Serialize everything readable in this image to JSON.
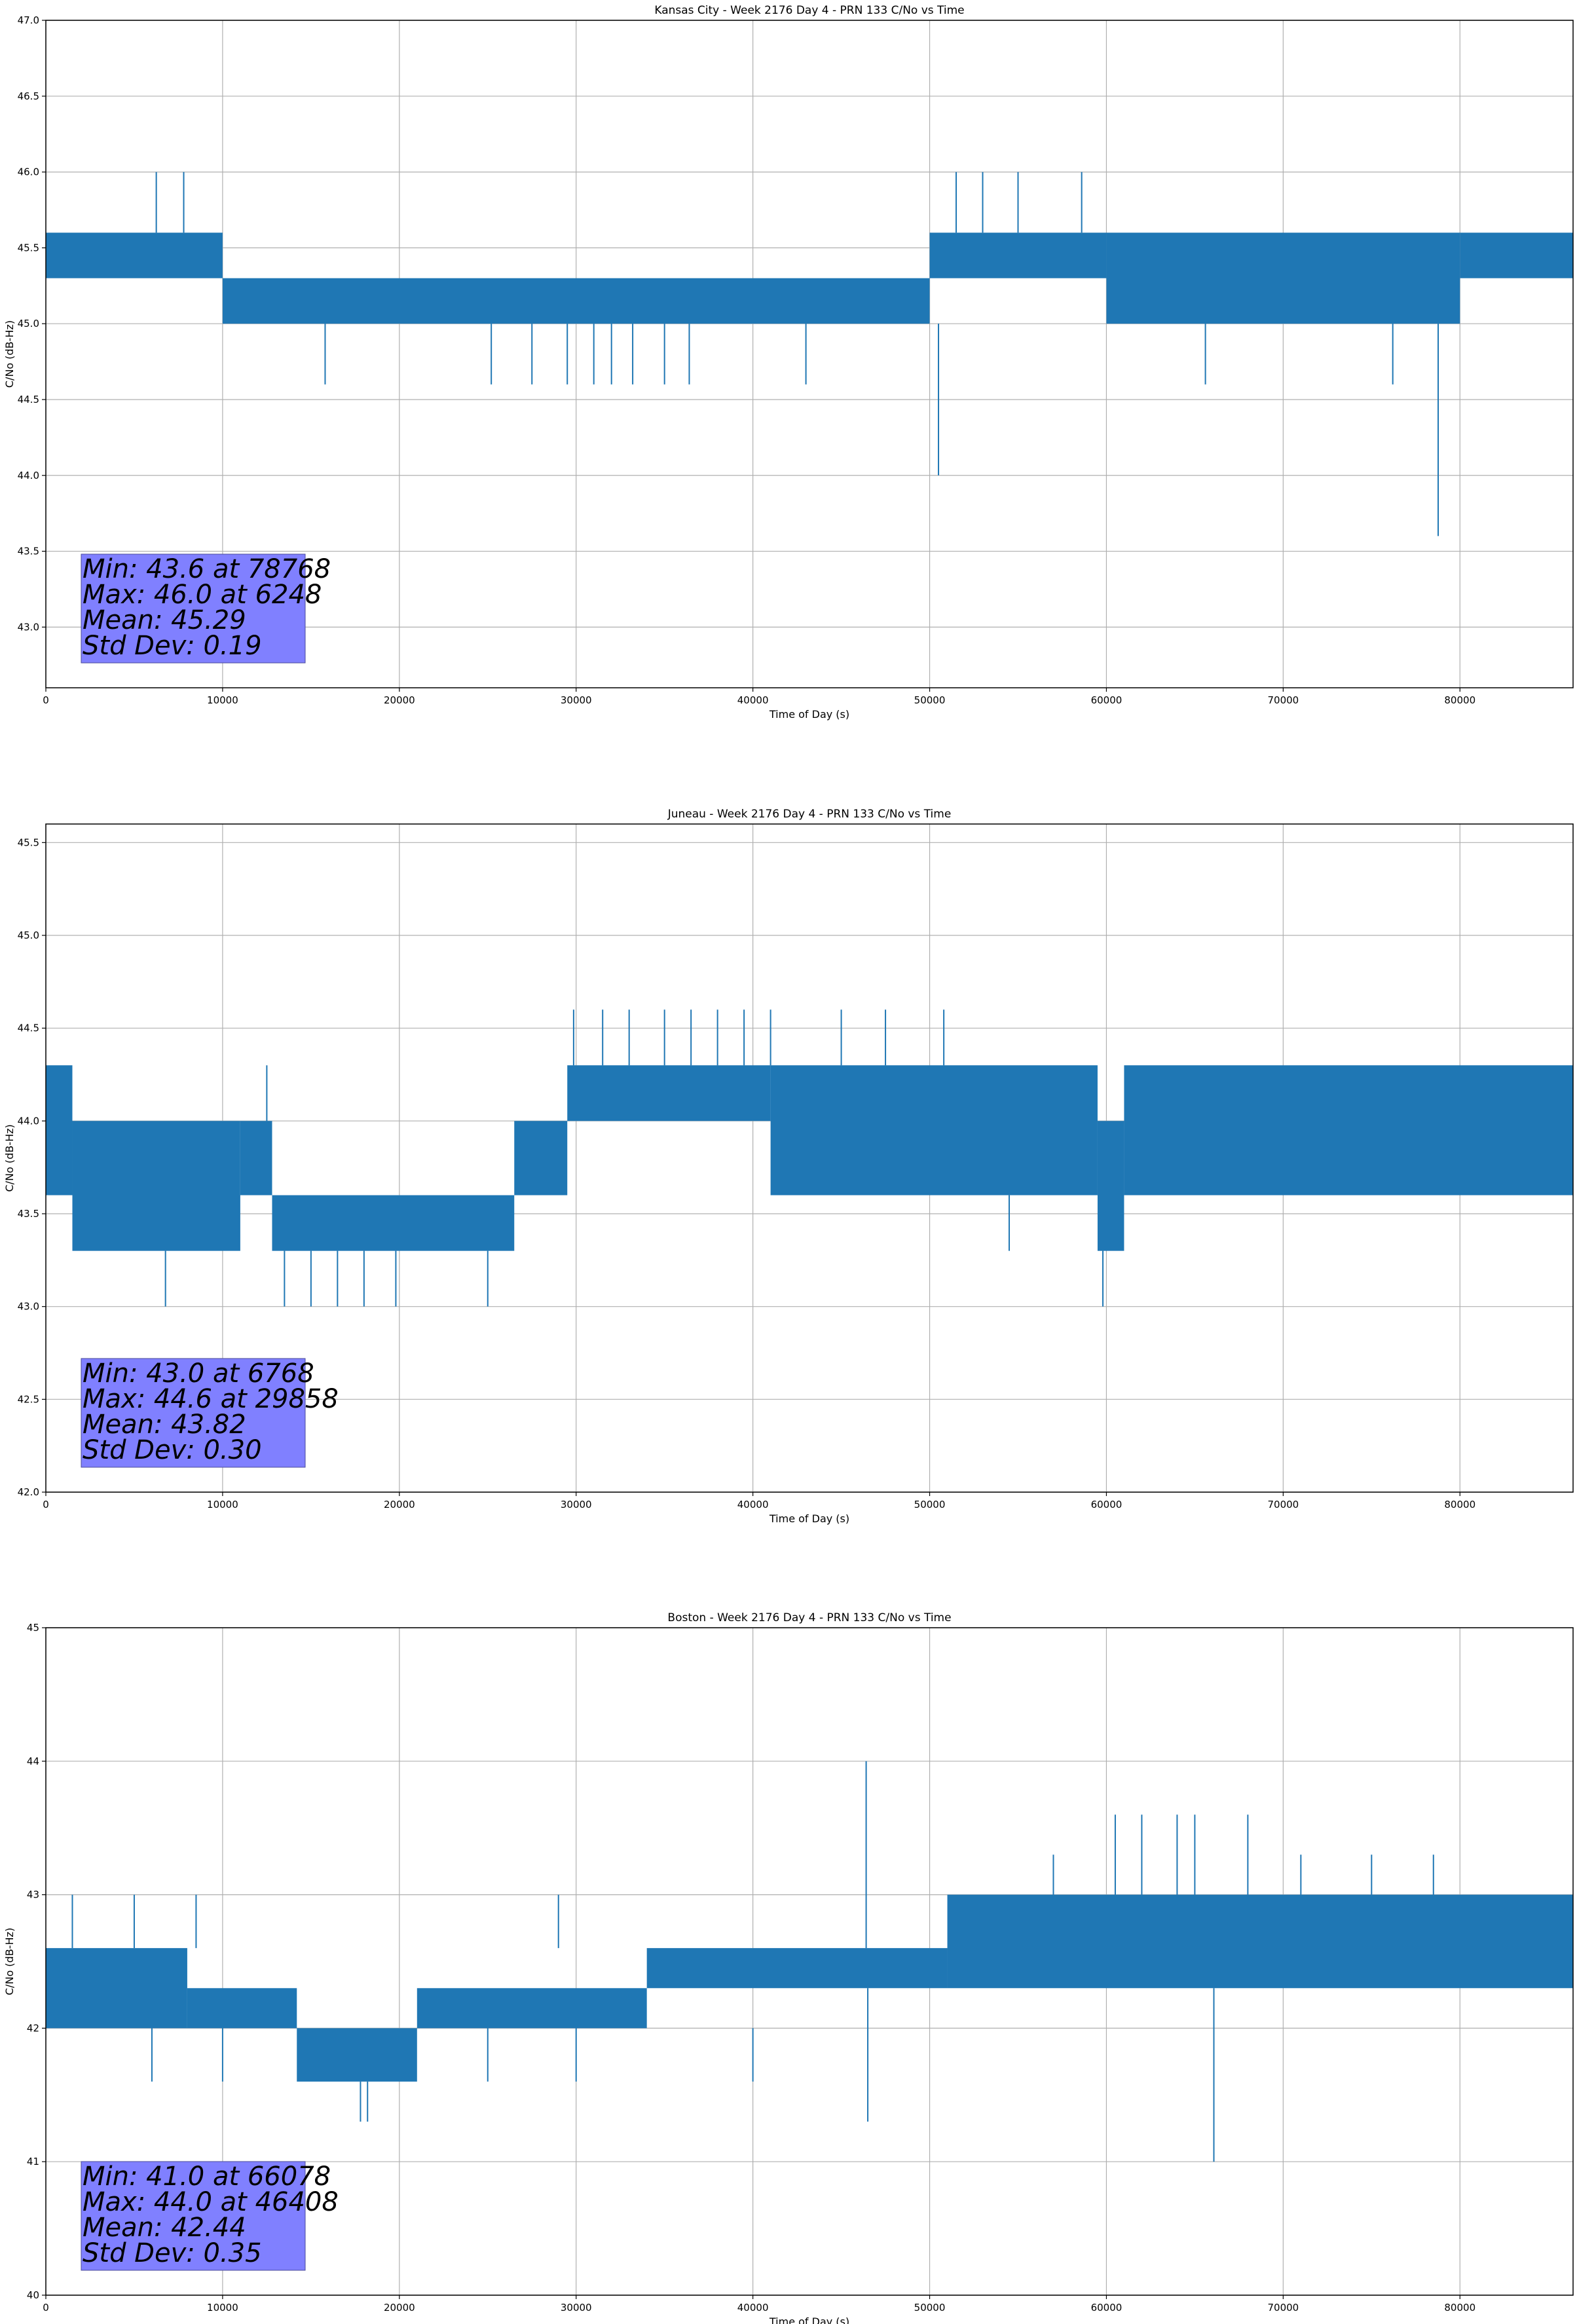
{
  "figure": {
    "line_color": "#1f77b4",
    "stats_box_color": "#8080ff"
  },
  "chart_data": [
    {
      "type": "line",
      "title": "Kansas City - Week 2176 Day 4 - PRN 133 C/No vs Time",
      "xlabel": "Time of Day (s)",
      "ylabel": "C/No (dB-Hz)",
      "xlim": [
        0,
        86400
      ],
      "ylim": [
        42.6,
        47.0
      ],
      "xticks": [
        0,
        10000,
        20000,
        30000,
        40000,
        50000,
        60000,
        70000,
        80000
      ],
      "xtick_labels": [
        "0",
        "10000",
        "20000",
        "30000",
        "40000",
        "50000",
        "60000",
        "70000",
        "80000"
      ],
      "yticks": [
        43.0,
        43.5,
        44.0,
        44.5,
        45.0,
        45.5,
        46.0,
        46.5,
        47.0
      ],
      "ytick_labels": [
        "43.0",
        "43.5",
        "44.0",
        "44.5",
        "45.0",
        "45.5",
        "46.0",
        "46.5",
        "47.0"
      ],
      "grid": true,
      "series": [
        {
          "name": "PRN 133 C/No",
          "segments": [
            {
              "x0": 0,
              "x1": 10000,
              "lo": 45.3,
              "hi": 45.6
            },
            {
              "x0": 10000,
              "x1": 50000,
              "lo": 45.0,
              "hi": 45.3
            },
            {
              "x0": 50000,
              "x1": 60000,
              "lo": 45.3,
              "hi": 45.6
            },
            {
              "x0": 60000,
              "x1": 80000,
              "lo": 45.0,
              "hi": 45.6
            },
            {
              "x0": 80000,
              "x1": 86400,
              "lo": 45.3,
              "hi": 45.6
            }
          ],
          "spikes": [
            {
              "x": 6248,
              "lo": 45.6,
              "hi": 46.0
            },
            {
              "x": 7800,
              "lo": 45.6,
              "hi": 46.0
            },
            {
              "x": 15800,
              "lo": 44.6,
              "hi": 45.0
            },
            {
              "x": 25200,
              "lo": 44.6,
              "hi": 45.0
            },
            {
              "x": 27500,
              "lo": 44.6,
              "hi": 45.0
            },
            {
              "x": 29500,
              "lo": 44.6,
              "hi": 45.0
            },
            {
              "x": 31000,
              "lo": 44.6,
              "hi": 45.0
            },
            {
              "x": 32000,
              "lo": 44.6,
              "hi": 45.0
            },
            {
              "x": 33200,
              "lo": 44.6,
              "hi": 45.0
            },
            {
              "x": 35000,
              "lo": 44.6,
              "hi": 45.0
            },
            {
              "x": 36400,
              "lo": 44.6,
              "hi": 45.0
            },
            {
              "x": 43000,
              "lo": 44.6,
              "hi": 45.0
            },
            {
              "x": 50500,
              "lo": 44.0,
              "hi": 45.0
            },
            {
              "x": 51500,
              "lo": 45.6,
              "hi": 46.0
            },
            {
              "x": 53000,
              "lo": 45.6,
              "hi": 46.0
            },
            {
              "x": 55000,
              "lo": 45.6,
              "hi": 46.0
            },
            {
              "x": 58600,
              "lo": 45.6,
              "hi": 46.0
            },
            {
              "x": 65600,
              "lo": 44.6,
              "hi": 45.0
            },
            {
              "x": 76200,
              "lo": 44.6,
              "hi": 45.0
            },
            {
              "x": 78768,
              "lo": 43.6,
              "hi": 45.0
            }
          ]
        }
      ],
      "stats": {
        "lines": [
          "Min: 43.6 at 78768",
          "Max: 46.0 at 6248",
          "Mean: 45.29",
          "Std Dev: 0.19"
        ],
        "min": 43.6,
        "min_time": 78768,
        "max": 46.0,
        "max_time": 6248,
        "mean": 45.29,
        "std_dev": 0.19
      }
    },
    {
      "type": "line",
      "title": "Juneau - Week 2176 Day 4 - PRN 133 C/No vs Time",
      "xlabel": "Time of Day (s)",
      "ylabel": "C/No (dB-Hz)",
      "xlim": [
        0,
        86400
      ],
      "ylim": [
        42.0,
        45.6
      ],
      "xticks": [
        0,
        10000,
        20000,
        30000,
        40000,
        50000,
        60000,
        70000,
        80000
      ],
      "xtick_labels": [
        "0",
        "10000",
        "20000",
        "30000",
        "40000",
        "50000",
        "60000",
        "70000",
        "80000"
      ],
      "yticks": [
        42.0,
        42.5,
        43.0,
        43.5,
        44.0,
        44.5,
        45.0,
        45.5
      ],
      "ytick_labels": [
        "42.0",
        "42.5",
        "43.0",
        "43.5",
        "44.0",
        "44.5",
        "45.0",
        "45.5"
      ],
      "grid": true,
      "series": [
        {
          "name": "PRN 133 C/No",
          "segments": [
            {
              "x0": 0,
              "x1": 1500,
              "lo": 43.6,
              "hi": 44.3
            },
            {
              "x0": 1500,
              "x1": 11000,
              "lo": 43.3,
              "hi": 44.0
            },
            {
              "x0": 11000,
              "x1": 12800,
              "lo": 43.6,
              "hi": 44.0
            },
            {
              "x0": 12800,
              "x1": 26500,
              "lo": 43.3,
              "hi": 43.6
            },
            {
              "x0": 26500,
              "x1": 29500,
              "lo": 43.6,
              "hi": 44.0
            },
            {
              "x0": 29500,
              "x1": 41000,
              "lo": 44.0,
              "hi": 44.3
            },
            {
              "x0": 41000,
              "x1": 59500,
              "lo": 43.6,
              "hi": 44.3
            },
            {
              "x0": 59500,
              "x1": 61000,
              "lo": 43.3,
              "hi": 44.0
            },
            {
              "x0": 61000,
              "x1": 86400,
              "lo": 43.6,
              "hi": 44.3
            }
          ],
          "spikes": [
            {
              "x": 6768,
              "lo": 43.0,
              "hi": 43.3
            },
            {
              "x": 12500,
              "lo": 44.0,
              "hi": 44.3
            },
            {
              "x": 13500,
              "lo": 43.0,
              "hi": 43.3
            },
            {
              "x": 15000,
              "lo": 43.0,
              "hi": 43.3
            },
            {
              "x": 16500,
              "lo": 43.0,
              "hi": 43.3
            },
            {
              "x": 18000,
              "lo": 43.0,
              "hi": 43.3
            },
            {
              "x": 19800,
              "lo": 43.0,
              "hi": 43.3
            },
            {
              "x": 25000,
              "lo": 43.0,
              "hi": 43.3
            },
            {
              "x": 29858,
              "lo": 44.3,
              "hi": 44.6
            },
            {
              "x": 31500,
              "lo": 44.3,
              "hi": 44.6
            },
            {
              "x": 33000,
              "lo": 44.3,
              "hi": 44.6
            },
            {
              "x": 35000,
              "lo": 44.3,
              "hi": 44.6
            },
            {
              "x": 36500,
              "lo": 44.3,
              "hi": 44.6
            },
            {
              "x": 38000,
              "lo": 44.3,
              "hi": 44.6
            },
            {
              "x": 39500,
              "lo": 44.3,
              "hi": 44.6
            },
            {
              "x": 41000,
              "lo": 44.3,
              "hi": 44.6
            },
            {
              "x": 45000,
              "lo": 44.3,
              "hi": 44.6
            },
            {
              "x": 47500,
              "lo": 44.3,
              "hi": 44.6
            },
            {
              "x": 50800,
              "lo": 44.3,
              "hi": 44.6
            },
            {
              "x": 54500,
              "lo": 43.3,
              "hi": 43.6
            },
            {
              "x": 59800,
              "lo": 43.0,
              "hi": 43.3
            }
          ]
        }
      ],
      "stats": {
        "lines": [
          "Min: 43.0 at 6768",
          "Max: 44.6 at 29858",
          "Mean: 43.82",
          "Std Dev: 0.30"
        ],
        "min": 43.0,
        "min_time": 6768,
        "max": 44.6,
        "max_time": 29858,
        "mean": 43.82,
        "std_dev": 0.3
      }
    },
    {
      "type": "line",
      "title": "Boston - Week 2176 Day 4 - PRN 133 C/No vs Time",
      "xlabel": "Time of Day (s)",
      "ylabel": "C/No (dB-Hz)",
      "xlim": [
        0,
        86400
      ],
      "ylim": [
        40,
        45
      ],
      "xticks": [
        0,
        10000,
        20000,
        30000,
        40000,
        50000,
        60000,
        70000,
        80000
      ],
      "xtick_labels": [
        "0",
        "10000",
        "20000",
        "30000",
        "40000",
        "50000",
        "60000",
        "70000",
        "80000"
      ],
      "yticks": [
        40,
        41,
        42,
        43,
        44,
        45
      ],
      "ytick_labels": [
        "40",
        "41",
        "42",
        "43",
        "44",
        "45"
      ],
      "grid": true,
      "series": [
        {
          "name": "PRN 133 C/No",
          "segments": [
            {
              "x0": 0,
              "x1": 8000,
              "lo": 42.0,
              "hi": 42.6
            },
            {
              "x0": 8000,
              "x1": 14200,
              "lo": 42.0,
              "hi": 42.3
            },
            {
              "x0": 14200,
              "x1": 21000,
              "lo": 41.6,
              "hi": 42.0
            },
            {
              "x0": 21000,
              "x1": 34000,
              "lo": 42.0,
              "hi": 42.3
            },
            {
              "x0": 34000,
              "x1": 51000,
              "lo": 42.3,
              "hi": 42.6
            },
            {
              "x0": 51000,
              "x1": 86400,
              "lo": 42.3,
              "hi": 43.0
            }
          ],
          "spikes": [
            {
              "x": 1500,
              "lo": 42.6,
              "hi": 43.0
            },
            {
              "x": 5000,
              "lo": 42.6,
              "hi": 43.0
            },
            {
              "x": 8500,
              "lo": 42.6,
              "hi": 43.0
            },
            {
              "x": 6000,
              "lo": 41.6,
              "hi": 42.0
            },
            {
              "x": 10000,
              "lo": 41.6,
              "hi": 42.0
            },
            {
              "x": 17800,
              "lo": 41.3,
              "hi": 41.6
            },
            {
              "x": 18200,
              "lo": 41.3,
              "hi": 41.6
            },
            {
              "x": 25000,
              "lo": 41.6,
              "hi": 42.0
            },
            {
              "x": 29000,
              "lo": 42.6,
              "hi": 43.0
            },
            {
              "x": 30000,
              "lo": 41.6,
              "hi": 42.0
            },
            {
              "x": 40000,
              "lo": 41.6,
              "hi": 42.0
            },
            {
              "x": 46408,
              "lo": 42.6,
              "hi": 44.0
            },
            {
              "x": 46500,
              "lo": 41.3,
              "hi": 42.3
            },
            {
              "x": 57000,
              "lo": 43.0,
              "hi": 43.3
            },
            {
              "x": 60500,
              "lo": 43.0,
              "hi": 43.6
            },
            {
              "x": 62000,
              "lo": 43.0,
              "hi": 43.6
            },
            {
              "x": 64000,
              "lo": 43.0,
              "hi": 43.6
            },
            {
              "x": 65000,
              "lo": 43.0,
              "hi": 43.6
            },
            {
              "x": 66078,
              "lo": 41.0,
              "hi": 42.3
            },
            {
              "x": 68000,
              "lo": 43.0,
              "hi": 43.6
            },
            {
              "x": 71000,
              "lo": 43.0,
              "hi": 43.3
            },
            {
              "x": 75000,
              "lo": 43.0,
              "hi": 43.3
            },
            {
              "x": 78500,
              "lo": 43.0,
              "hi": 43.3
            }
          ]
        }
      ],
      "stats": {
        "lines": [
          "Min: 41.0 at 66078",
          "Max: 44.0 at 46408",
          "Mean: 42.44",
          "Std Dev: 0.35"
        ],
        "min": 41.0,
        "min_time": 66078,
        "max": 44.0,
        "max_time": 46408,
        "mean": 42.44,
        "std_dev": 0.35
      }
    }
  ]
}
